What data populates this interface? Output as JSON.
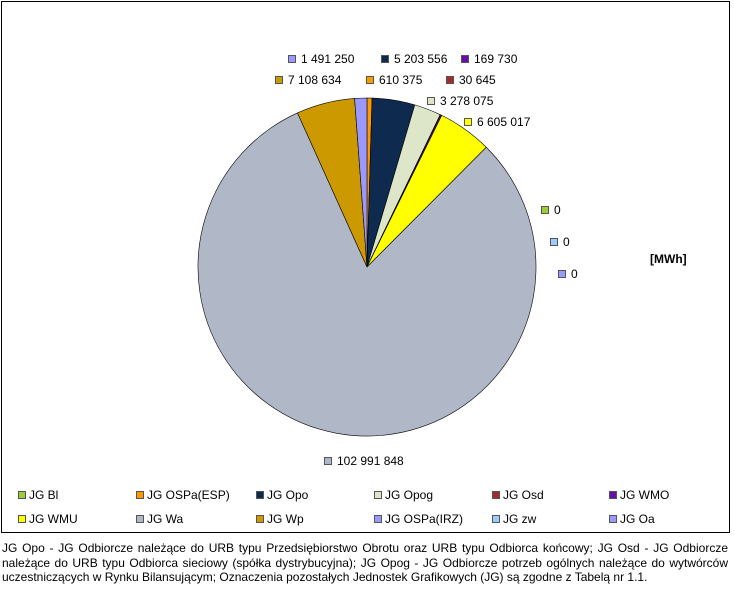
{
  "chart_data": {
    "type": "pie",
    "unit_label": "[MWh]",
    "slices": [
      {
        "name": "JG Bl",
        "value": 0,
        "label": "0",
        "color": "#9ACD32"
      },
      {
        "name": "JG OSPa(ESP)",
        "value": 610375,
        "label": "610 375",
        "color": "#FF9900"
      },
      {
        "name": "JG Opo",
        "value": 5203556,
        "label": "5 203 556",
        "color": "#0F2A4F"
      },
      {
        "name": "JG Opog",
        "value": 3278075,
        "label": "3 278 075",
        "color": "#DDE6C8"
      },
      {
        "name": "JG Osd",
        "value": 30645,
        "label": "30 645",
        "color": "#A52A2A"
      },
      {
        "name": "JG WMO",
        "value": 169730,
        "label": "169 730",
        "color": "#6A0DAD"
      },
      {
        "name": "JG WMU",
        "value": 6605017,
        "label": "6 605 017",
        "color": "#FFFF00"
      },
      {
        "name": "JG Wa",
        "value": 102991848,
        "label": "102 991 848",
        "color": "#B0B8C8"
      },
      {
        "name": "JG Wp",
        "value": 7108634,
        "label": "7 108 634",
        "color": "#CC9900"
      },
      {
        "name": "JG OSPa(IRZ)",
        "value": 1491250,
        "label": "1 491 250",
        "color": "#9999FF"
      },
      {
        "name": "JG zw",
        "value": 0,
        "label": "0",
        "color": "#99CCFF"
      },
      {
        "name": "JG Oa",
        "value": 0,
        "label": "0",
        "color": "#9999FF"
      }
    ],
    "legend_placement": "bottom"
  },
  "caption": "JG Opo - JG Odbiorcze należące do URB typu Przedsiębiorstwo Obrotu oraz URB typu Odbiorca końcowy; JG Osd - JG Odbiorcze należące do URB typu Odbiorca sieciowy (spółka dystrybucyjna); JG Opog - JG Odbiorcze potrzeb ogólnych należące do wytwórców uczestniczących w Rynku Bilansującym; Oznaczenia pozostałych Jednostek Grafikowych (JG) są zgodne z Tabelą nr 1.1."
}
